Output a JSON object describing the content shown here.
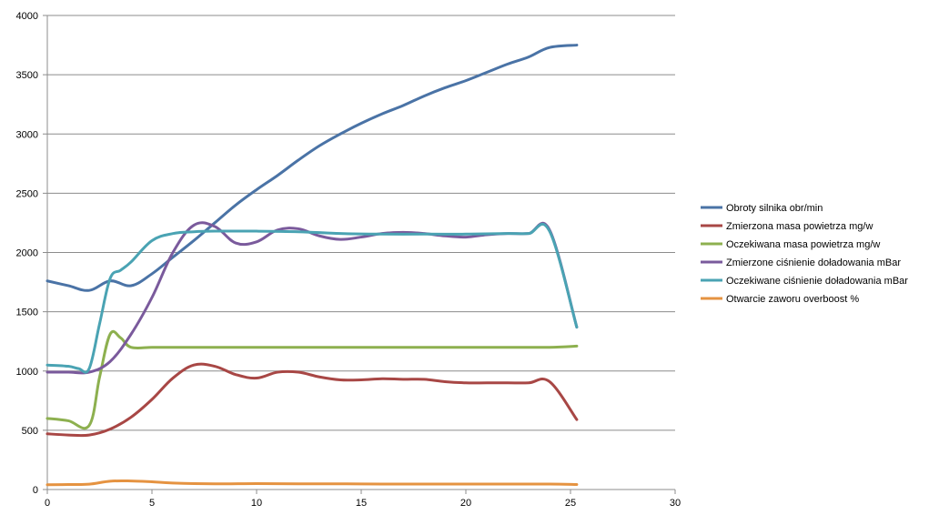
{
  "chart_data": {
    "type": "line",
    "title": "",
    "xlabel": "",
    "ylabel": "",
    "xlim": [
      0,
      30
    ],
    "ylim": [
      0,
      4000
    ],
    "x_ticks": [
      0,
      5,
      10,
      15,
      20,
      25,
      30
    ],
    "y_ticks": [
      0,
      500,
      1000,
      1500,
      2000,
      2500,
      3000,
      3500,
      4000
    ],
    "grid": "horizontal",
    "legend_position": "right",
    "series": [
      {
        "name": "Obroty silnika obr/min",
        "color": "#4a73a6",
        "x": [
          0,
          1,
          2,
          3,
          4,
          5,
          6,
          7,
          8,
          9,
          10,
          11,
          12,
          13,
          14,
          15,
          16,
          17,
          18,
          19,
          20,
          21,
          22,
          23,
          24,
          25.3
        ],
        "y": [
          1760,
          1720,
          1680,
          1760,
          1720,
          1820,
          1960,
          2100,
          2250,
          2400,
          2530,
          2650,
          2780,
          2900,
          3000,
          3090,
          3170,
          3240,
          3320,
          3390,
          3450,
          3520,
          3590,
          3650,
          3730,
          3750
        ]
      },
      {
        "name": "Zmierzona masa powietrza mg/w",
        "color": "#a84745",
        "x": [
          0,
          1,
          2,
          3,
          4,
          5,
          6,
          7,
          8,
          9,
          10,
          11,
          12,
          13,
          14,
          15,
          16,
          17,
          18,
          19,
          20,
          21,
          22,
          23,
          24,
          25.3
        ],
        "y": [
          470,
          460,
          460,
          510,
          610,
          760,
          940,
          1050,
          1040,
          970,
          940,
          990,
          990,
          950,
          925,
          925,
          935,
          930,
          930,
          910,
          900,
          900,
          900,
          900,
          910,
          590
        ]
      },
      {
        "name": "Oczekiwana masa powietrza mg/w",
        "color": "#8db04f",
        "x": [
          0,
          1,
          2,
          2.5,
          3,
          3.5,
          4,
          5,
          6,
          8,
          10,
          12,
          14,
          16,
          18,
          20,
          22,
          24,
          25.3
        ],
        "y": [
          600,
          580,
          540,
          950,
          1310,
          1280,
          1200,
          1200,
          1200,
          1200,
          1200,
          1200,
          1200,
          1200,
          1200,
          1200,
          1200,
          1200,
          1210
        ]
      },
      {
        "name": "Zmierzone ciśnienie doładowania mBar",
        "color": "#7a5a9c",
        "x": [
          0,
          1,
          2,
          3,
          4,
          5,
          6,
          7,
          8,
          9,
          10,
          11,
          12,
          13,
          14,
          15,
          16,
          17,
          18,
          19,
          20,
          21,
          22,
          23,
          24,
          25.3
        ],
        "y": [
          990,
          990,
          990,
          1080,
          1310,
          1620,
          2000,
          2230,
          2220,
          2080,
          2090,
          2190,
          2200,
          2140,
          2110,
          2130,
          2160,
          2170,
          2160,
          2140,
          2130,
          2150,
          2160,
          2160,
          2190,
          1370
        ]
      },
      {
        "name": "Oczekiwane ciśnienie doładowania mBar",
        "color": "#4aa3b3",
        "x": [
          0,
          1,
          1.5,
          2,
          2.5,
          3,
          3.5,
          4,
          5,
          6,
          7,
          8,
          10,
          12,
          14,
          16,
          18,
          20,
          22,
          23,
          24,
          25.3
        ],
        "y": [
          1050,
          1040,
          1020,
          1020,
          1400,
          1780,
          1850,
          1920,
          2100,
          2160,
          2175,
          2180,
          2180,
          2175,
          2160,
          2155,
          2155,
          2155,
          2160,
          2160,
          2180,
          1370
        ]
      },
      {
        "name": "Otwarcie zaworu overboost %",
        "color": "#e59341",
        "x": [
          0,
          1,
          2,
          3,
          4,
          5,
          6,
          8,
          10,
          12,
          14,
          16,
          18,
          20,
          22,
          24,
          25.3
        ],
        "y": [
          40,
          42,
          45,
          70,
          72,
          65,
          55,
          48,
          50,
          48,
          48,
          46,
          46,
          46,
          46,
          46,
          42
        ]
      }
    ]
  }
}
